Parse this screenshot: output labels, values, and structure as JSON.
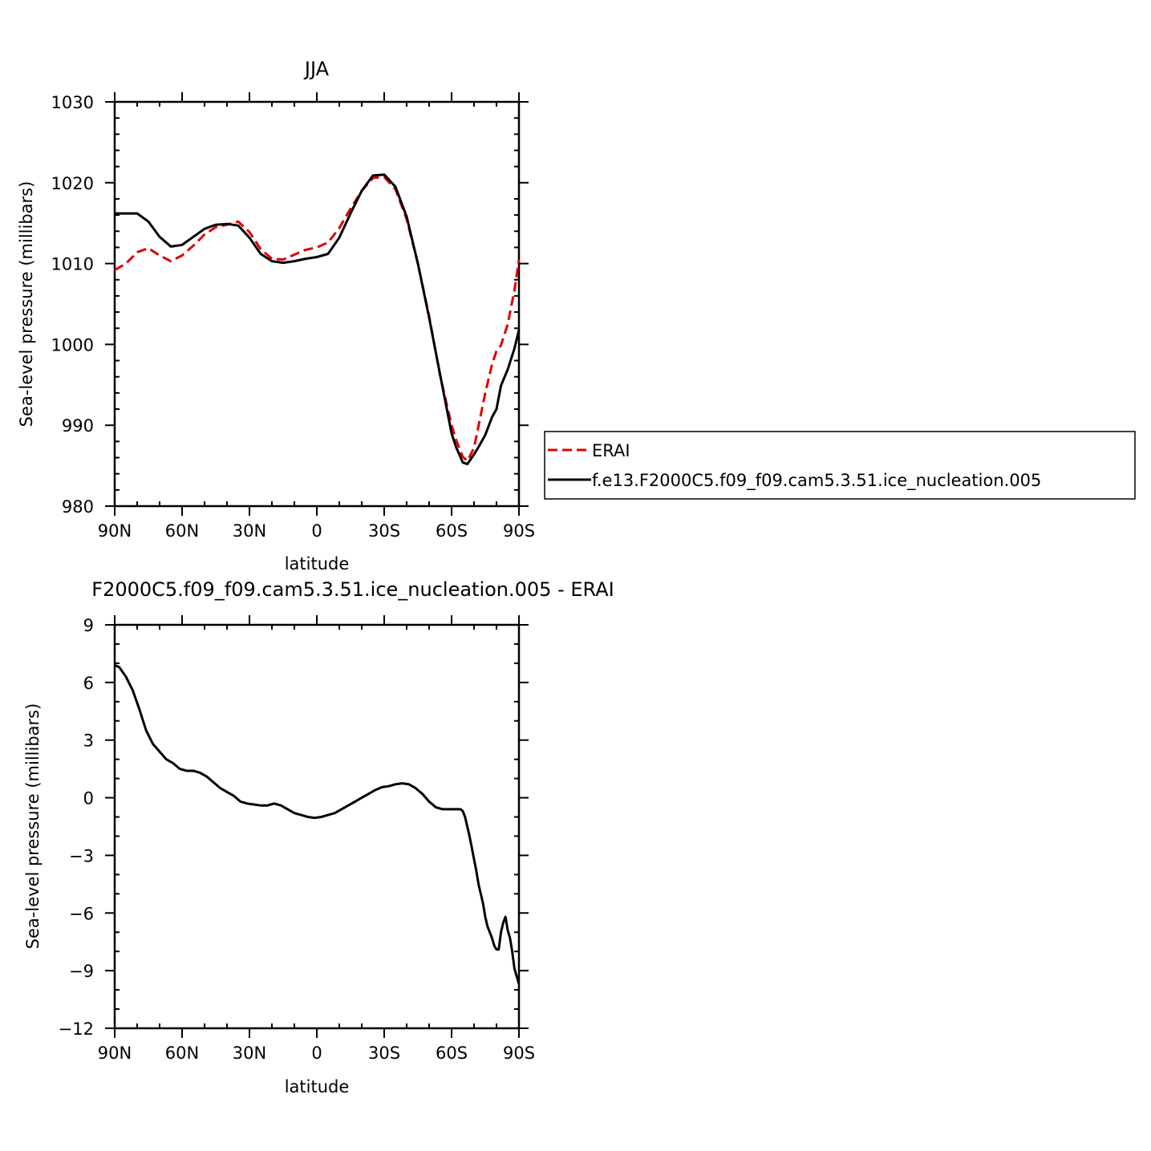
{
  "chart_data": [
    {
      "type": "line",
      "title": "JJA",
      "xlabel": "latitude",
      "ylabel": "Sea-level pressure (millibars)",
      "xlim": [
        90,
        -90
      ],
      "ylim": [
        980,
        1030
      ],
      "x_tick_values": [
        90,
        60,
        30,
        0,
        -30,
        -60,
        -90
      ],
      "x_tick_labels": [
        "90N",
        "60N",
        "30N",
        "0",
        "30S",
        "60S",
        "90S"
      ],
      "y_ticks": [
        980,
        990,
        1000,
        1010,
        1020,
        1030
      ],
      "legend": {
        "placement": "right",
        "entries": [
          {
            "label": "ERAI",
            "color": "#e00000",
            "dash": true
          },
          {
            "label": "f.e13.F2000C5.f09_f09.cam5.3.51.ice_nucleation.005",
            "color": "#000000",
            "dash": false
          }
        ]
      },
      "series": [
        {
          "name": "ERAI",
          "color": "#e00000",
          "dashed": true,
          "x": [
            90,
            85,
            80,
            75,
            70,
            65,
            60,
            55,
            50,
            45,
            40,
            35,
            30,
            25,
            20,
            15,
            10,
            5,
            0,
            -5,
            -10,
            -15,
            -20,
            -25,
            -30,
            -35,
            -40,
            -45,
            -50,
            -55,
            -60,
            -62,
            -65,
            -67,
            -70,
            -75,
            -78,
            -80,
            -82,
            -85,
            -88,
            -90
          ],
          "values": [
            1009.2,
            1010.0,
            1011.4,
            1011.9,
            1011.0,
            1010.3,
            1011.0,
            1012.2,
            1013.6,
            1014.5,
            1014.8,
            1015.2,
            1013.9,
            1011.8,
            1010.6,
            1010.5,
            1011.1,
            1011.7,
            1012.0,
            1012.6,
            1014.4,
            1016.8,
            1019.0,
            1020.6,
            1020.7,
            1019.2,
            1015.5,
            1010.0,
            1003.5,
            996.0,
            990.0,
            988.2,
            986.1,
            985.6,
            987.2,
            994.0,
            997.5,
            999.2,
            999.9,
            1002.5,
            1006.7,
            1010.5
          ]
        },
        {
          "name": "f.e13.F2000C5.f09_f09.cam5.3.51.ice_nucleation.005",
          "color": "#000000",
          "dashed": false,
          "x": [
            90,
            85,
            80,
            75,
            70,
            65,
            60,
            55,
            50,
            45,
            40,
            35,
            30,
            25,
            20,
            15,
            10,
            5,
            0,
            -5,
            -10,
            -15,
            -20,
            -25,
            -30,
            -35,
            -40,
            -45,
            -50,
            -55,
            -60,
            -62,
            -65,
            -67,
            -70,
            -72,
            -75,
            -78,
            -80,
            -82,
            -85,
            -88,
            -90
          ],
          "values": [
            1016.2,
            1016.2,
            1016.2,
            1015.2,
            1013.3,
            1012.1,
            1012.3,
            1013.3,
            1014.3,
            1014.8,
            1014.9,
            1014.7,
            1013.2,
            1011.2,
            1010.3,
            1010.1,
            1010.3,
            1010.6,
            1010.8,
            1011.2,
            1013.2,
            1016.2,
            1019.0,
            1020.9,
            1021.0,
            1019.5,
            1015.8,
            1010.0,
            1003.3,
            996.1,
            989.0,
            987.3,
            985.4,
            985.2,
            986.4,
            987.3,
            988.8,
            991.0,
            992.0,
            994.9,
            996.9,
            999.5,
            1001.8
          ]
        }
      ]
    },
    {
      "type": "line",
      "title": "F2000C5.f09_f09.cam5.3.51.ice_nucleation.005 - ERAI",
      "xlabel": "latitude",
      "ylabel": "Sea-level pressure (millibars)",
      "xlim": [
        90,
        -90
      ],
      "ylim": [
        -12,
        9
      ],
      "x_tick_values": [
        90,
        60,
        30,
        0,
        -30,
        -60,
        -90
      ],
      "x_tick_labels": [
        "90N",
        "60N",
        "30N",
        "0",
        "30S",
        "60S",
        "90S"
      ],
      "y_ticks": [
        -12,
        -9,
        -6,
        -3,
        0,
        3,
        6,
        9
      ],
      "y_tick_labels": [
        "−12",
        "−9",
        "−6",
        "−3",
        "0",
        "3",
        "6",
        "9"
      ],
      "series": [
        {
          "color": "#000000",
          "dashed": false,
          "x": [
            90,
            88,
            85,
            82,
            79,
            76,
            73,
            70,
            67,
            64,
            61,
            58,
            55,
            52,
            49,
            46,
            43,
            40,
            37,
            34,
            31,
            28,
            25,
            22,
            19,
            16,
            13,
            10,
            7,
            4,
            1,
            -2,
            -5,
            -8,
            -11,
            -14,
            -17,
            -20,
            -23,
            -26,
            -29,
            -32,
            -35,
            -38,
            -41,
            -44,
            -47,
            -50,
            -53,
            -56,
            -59,
            -61,
            -63,
            -64,
            -65,
            -66,
            -67,
            -68,
            -69,
            -70,
            -71,
            -72,
            -73,
            -74,
            -75,
            -76,
            -77,
            -78,
            -79,
            -80,
            -81,
            -82,
            -83,
            -84,
            -85,
            -86,
            -87,
            -88,
            -89,
            -90
          ],
          "values": [
            6.9,
            6.8,
            6.3,
            5.6,
            4.6,
            3.5,
            2.8,
            2.4,
            2.0,
            1.8,
            1.5,
            1.4,
            1.4,
            1.3,
            1.1,
            0.8,
            0.5,
            0.3,
            0.1,
            -0.2,
            -0.3,
            -0.35,
            -0.4,
            -0.4,
            -0.3,
            -0.4,
            -0.6,
            -0.8,
            -0.9,
            -1.0,
            -1.05,
            -1.0,
            -0.9,
            -0.8,
            -0.6,
            -0.4,
            -0.2,
            0.0,
            0.2,
            0.4,
            0.55,
            0.6,
            0.7,
            0.75,
            0.7,
            0.5,
            0.2,
            -0.2,
            -0.5,
            -0.6,
            -0.6,
            -0.6,
            -0.6,
            -0.6,
            -0.7,
            -1.0,
            -1.5,
            -2.0,
            -2.6,
            -3.2,
            -3.8,
            -4.5,
            -5.0,
            -5.5,
            -6.2,
            -6.7,
            -7.0,
            -7.3,
            -7.7,
            -7.9,
            -7.9,
            -7.0,
            -6.5,
            -6.2,
            -6.9,
            -7.3,
            -8.0,
            -8.9,
            -9.3,
            -9.7
          ]
        }
      ]
    }
  ]
}
